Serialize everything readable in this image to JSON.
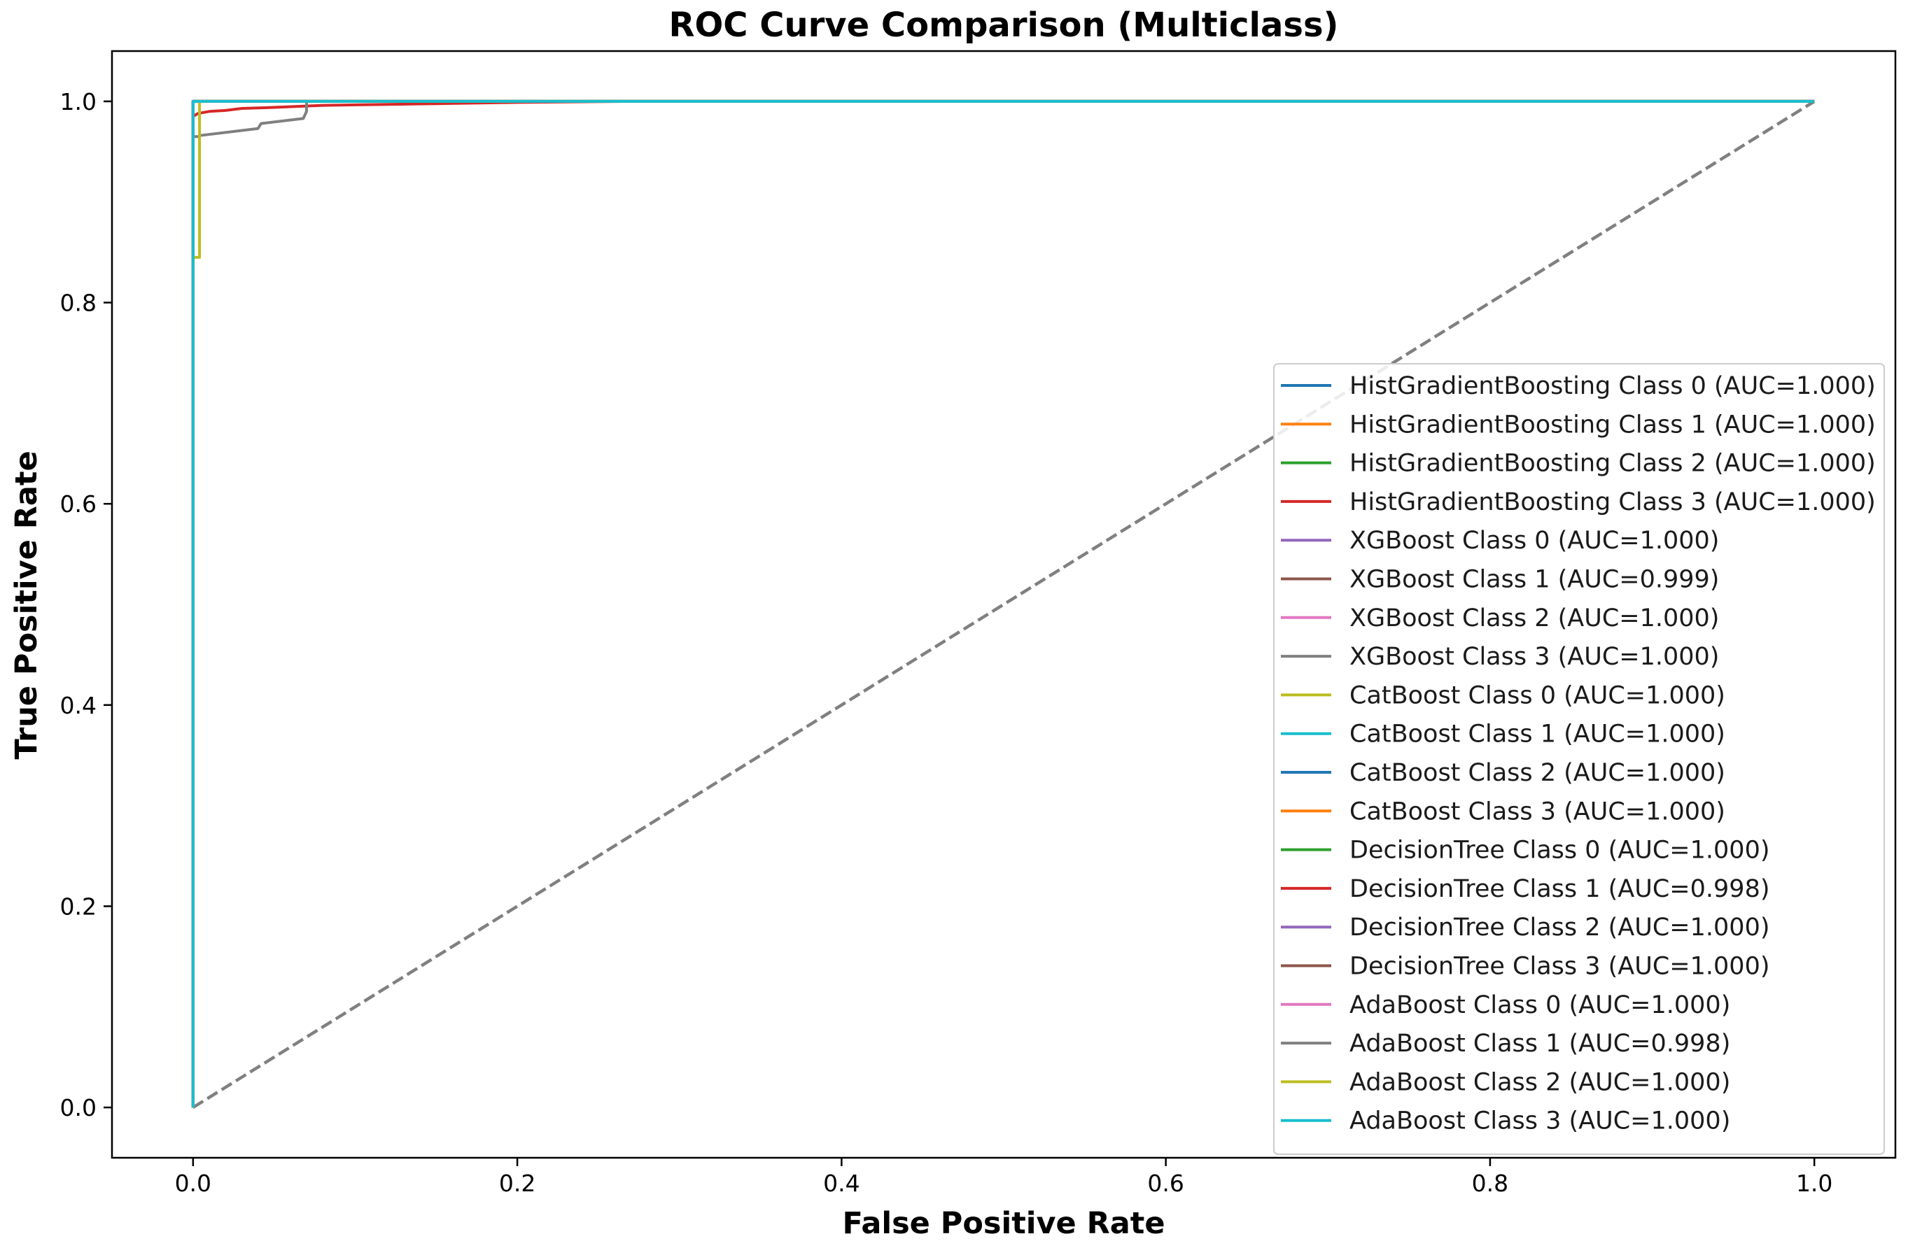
{
  "chart_data": {
    "type": "line",
    "title": "ROC Curve Comparison (Multiclass)",
    "xlabel": "False Positive Rate",
    "ylabel": "True Positive Rate",
    "xlim": [
      -0.05,
      1.05
    ],
    "ylim": [
      -0.05,
      1.05
    ],
    "x_ticks": [
      0.0,
      0.2,
      0.4,
      0.6,
      0.8,
      1.0
    ],
    "y_ticks": [
      0.0,
      0.2,
      0.4,
      0.6,
      0.8,
      1.0
    ],
    "x_tick_labels": [
      "0.0",
      "0.2",
      "0.4",
      "0.6",
      "0.8",
      "1.0"
    ],
    "y_tick_labels": [
      "0.0",
      "0.2",
      "0.4",
      "0.6",
      "0.8",
      "1.0"
    ],
    "grid": false,
    "legend_position": "lower right",
    "diagonal": {
      "x": [
        0,
        1
      ],
      "y": [
        0,
        1
      ],
      "color": "#808080",
      "style": "dashed"
    },
    "series": [
      {
        "name": "HistGradientBoosting Class 0 (AUC=1.000)",
        "color": "#1f77b4",
        "x": [
          0,
          0,
          1
        ],
        "y": [
          0,
          1,
          1
        ]
      },
      {
        "name": "HistGradientBoosting Class 1 (AUC=1.000)",
        "color": "#ff7f0e",
        "x": [
          0,
          0,
          1
        ],
        "y": [
          0,
          1,
          1
        ]
      },
      {
        "name": "HistGradientBoosting Class 2 (AUC=1.000)",
        "color": "#2ca02c",
        "x": [
          0,
          0,
          1
        ],
        "y": [
          0,
          1,
          1
        ]
      },
      {
        "name": "HistGradientBoosting Class 3 (AUC=1.000)",
        "color": "#d62728",
        "x": [
          0,
          0,
          1
        ],
        "y": [
          0,
          1,
          1
        ]
      },
      {
        "name": "XGBoost Class 0 (AUC=1.000)",
        "color": "#9467bd",
        "x": [
          0,
          0,
          1
        ],
        "y": [
          0,
          1,
          1
        ]
      },
      {
        "name": "XGBoost Class 1 (AUC=0.999)",
        "color": "#8c564b",
        "x": [
          0,
          0,
          1
        ],
        "y": [
          0,
          1,
          1
        ]
      },
      {
        "name": "XGBoost Class 2 (AUC=1.000)",
        "color": "#e377c2",
        "x": [
          0,
          0,
          1
        ],
        "y": [
          0,
          1,
          1
        ]
      },
      {
        "name": "XGBoost Class 3 (AUC=1.000)",
        "color": "#7f7f7f",
        "x": [
          0,
          0,
          1
        ],
        "y": [
          0,
          1,
          1
        ]
      },
      {
        "name": "CatBoost Class 0 (AUC=1.000)",
        "color": "#bcbd22",
        "x": [
          0,
          0,
          1
        ],
        "y": [
          0,
          1,
          1
        ]
      },
      {
        "name": "CatBoost Class 1 (AUC=1.000)",
        "color": "#17becf",
        "x": [
          0,
          0,
          1
        ],
        "y": [
          0,
          1,
          1
        ]
      },
      {
        "name": "CatBoost Class 2 (AUC=1.000)",
        "color": "#1f77b4",
        "x": [
          0,
          0,
          1
        ],
        "y": [
          0,
          1,
          1
        ]
      },
      {
        "name": "CatBoost Class 3 (AUC=1.000)",
        "color": "#ff7f0e",
        "x": [
          0,
          0,
          1
        ],
        "y": [
          0,
          1,
          1
        ]
      },
      {
        "name": "DecisionTree Class 0 (AUC=1.000)",
        "color": "#2ca02c",
        "x": [
          0,
          0,
          1
        ],
        "y": [
          0,
          1,
          1
        ]
      },
      {
        "name": "DecisionTree Class 1 (AUC=0.998)",
        "color": "#d62728",
        "x": [
          0,
          0,
          0.003,
          0.01,
          0.02,
          0.03,
          0.05,
          0.08,
          0.12,
          0.2,
          0.27,
          1
        ],
        "y": [
          0,
          0.985,
          0.988,
          0.99,
          0.991,
          0.993,
          0.994,
          0.996,
          0.997,
          0.999,
          1.0,
          1.0
        ]
      },
      {
        "name": "DecisionTree Class 2 (AUC=1.000)",
        "color": "#9467bd",
        "x": [
          0,
          0,
          1
        ],
        "y": [
          0,
          1,
          1
        ]
      },
      {
        "name": "DecisionTree Class 3 (AUC=1.000)",
        "color": "#8c564b",
        "x": [
          0,
          0,
          1
        ],
        "y": [
          0,
          1,
          1
        ]
      },
      {
        "name": "AdaBoost Class 0 (AUC=1.000)",
        "color": "#e377c2",
        "x": [
          0,
          0,
          1
        ],
        "y": [
          0,
          1,
          1
        ]
      },
      {
        "name": "AdaBoost Class 1 (AUC=0.998)",
        "color": "#7f7f7f",
        "x": [
          0,
          0,
          0.004,
          0.004,
          0.04,
          0.042,
          0.068,
          0.07,
          0.07,
          0.07,
          1
        ],
        "y": [
          0,
          0.965,
          0.965,
          0.966,
          0.973,
          0.978,
          0.983,
          0.99,
          1.0,
          1.0,
          1.0
        ]
      },
      {
        "name": "AdaBoost Class 2 (AUC=1.000)",
        "color": "#bcbd22",
        "x": [
          0,
          0,
          0.004,
          0.004,
          0.004,
          1
        ],
        "y": [
          0,
          0.845,
          0.845,
          0.995,
          1.0,
          1.0
        ]
      },
      {
        "name": "AdaBoost Class 3 (AUC=1.000)",
        "color": "#17becf",
        "x": [
          0,
          0,
          1
        ],
        "y": [
          0,
          1,
          1
        ]
      }
    ]
  }
}
